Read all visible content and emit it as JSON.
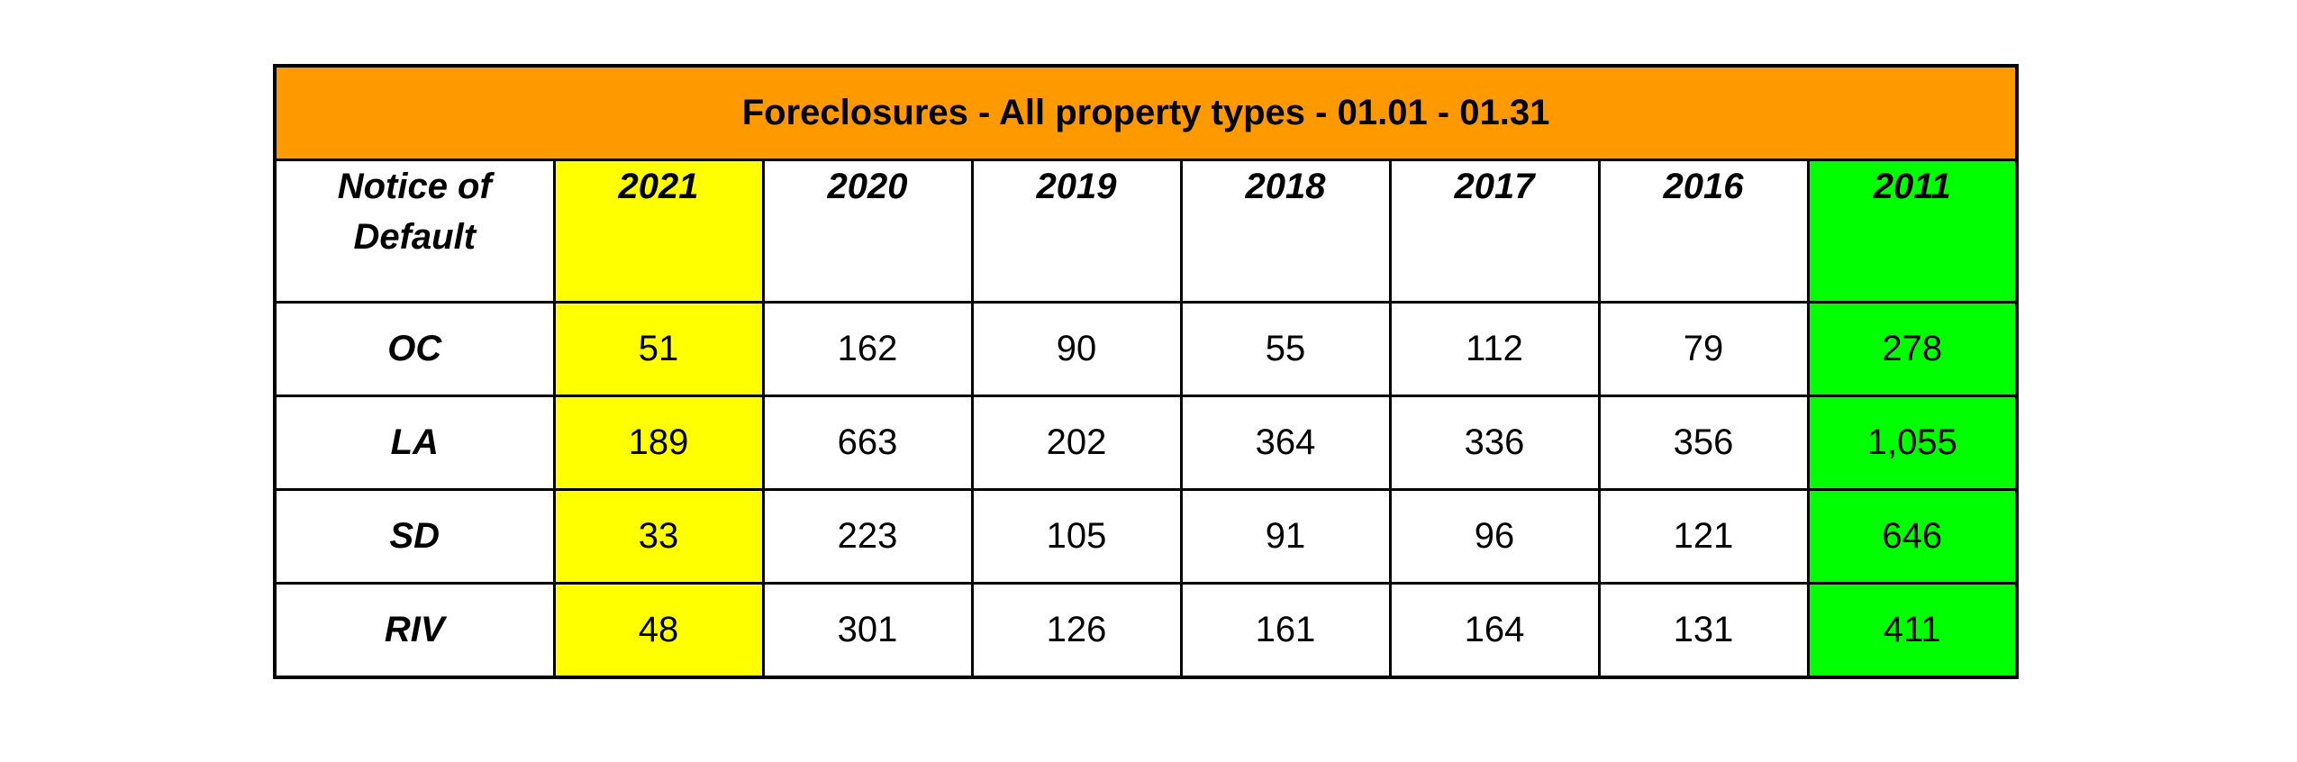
{
  "title": "Foreclosures - All property types - 01.01 - 01.31",
  "colors": {
    "title_bg": "#ff9900",
    "highlight_2021": "#ffff00",
    "highlight_2011": "#00ff00",
    "border": "#000000"
  },
  "header": {
    "label_line1": "Notice of",
    "label_line2": "Default",
    "years": [
      "2021",
      "2020",
      "2019",
      "2018",
      "2017",
      "2016",
      "2011"
    ]
  },
  "rows": [
    {
      "label": "OC",
      "values": [
        "51",
        "162",
        "90",
        "55",
        "112",
        "79",
        "278"
      ]
    },
    {
      "label": "LA",
      "values": [
        "189",
        "663",
        "202",
        "364",
        "336",
        "356",
        "1,055"
      ]
    },
    {
      "label": "SD",
      "values": [
        "33",
        "223",
        "105",
        "91",
        "96",
        "121",
        "646"
      ]
    },
    {
      "label": "RIV",
      "values": [
        "48",
        "301",
        "126",
        "161",
        "164",
        "131",
        "411"
      ]
    }
  ]
}
